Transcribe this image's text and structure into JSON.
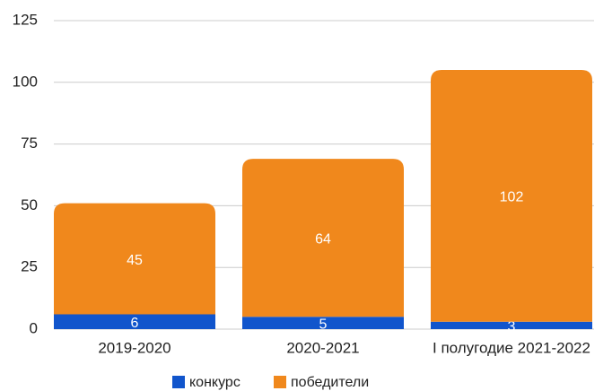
{
  "chart_data": {
    "type": "stacked_bar",
    "categories": [
      "2019-2020",
      "2020-2021",
      "I полугодие 2021-2022"
    ],
    "series": [
      {
        "name": "конкурс",
        "color": "#1155cc",
        "values": [
          6,
          5,
          3
        ]
      },
      {
        "name": "победители",
        "color": "#f0881c",
        "values": [
          45,
          64,
          102
        ]
      }
    ],
    "ylim": [
      0,
      125
    ],
    "yticks": [
      0,
      25,
      50,
      75,
      100,
      125
    ],
    "grid": true,
    "legend": "bottom"
  }
}
